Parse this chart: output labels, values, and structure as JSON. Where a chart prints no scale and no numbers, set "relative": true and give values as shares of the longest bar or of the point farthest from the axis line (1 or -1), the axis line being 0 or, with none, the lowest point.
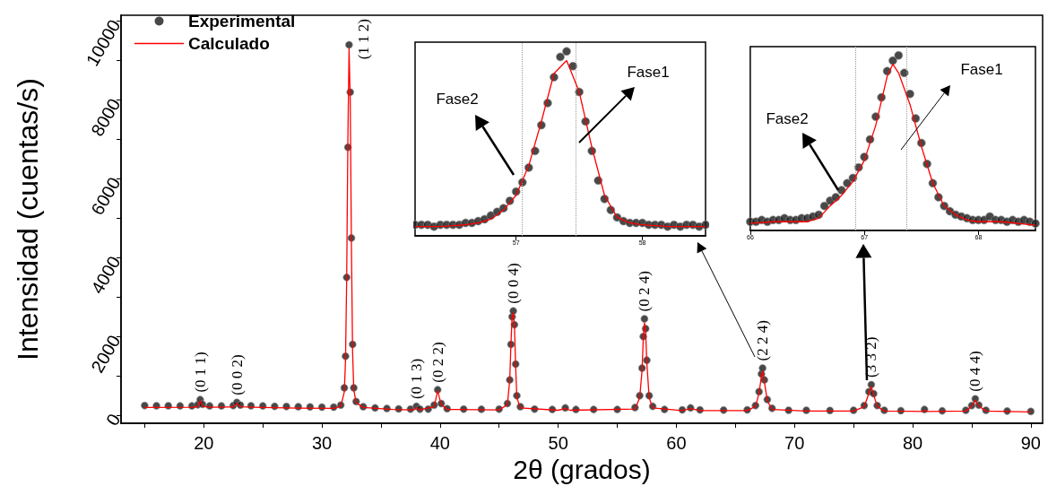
{
  "chart_data": [
    {
      "type": "scatter",
      "xlabel": "2θ (grados)",
      "ylabel": "Intensidad (cuentas/s)",
      "xlim": [
        13,
        91
      ],
      "ylim": [
        -200,
        10150
      ],
      "xticks": [
        20,
        30,
        40,
        50,
        60,
        70,
        80,
        90,
        {
          "value": 15,
          "label": null
        },
        {
          "value": 25,
          "label": null
        },
        {
          "value": 35,
          "label": null
        },
        {
          "value": 45,
          "label": null
        },
        {
          "value": 55,
          "label": null
        },
        {
          "value": 65,
          "label": null
        },
        {
          "value": 75,
          "label": null
        },
        {
          "value": 85,
          "label": null
        }
      ],
      "yticks": [
        0,
        2000,
        4000,
        6000,
        8000,
        10000,
        {
          "value": 1000,
          "label": null
        },
        {
          "value": 3000,
          "label": null
        },
        {
          "value": 5000,
          "label": null
        },
        {
          "value": 7000,
          "label": null
        },
        {
          "value": 9000,
          "label": null
        }
      ],
      "legend": "top left",
      "series": [
        {
          "name": "Experimental",
          "marker": "circle",
          "color": "#1a1a1a",
          "x": [
            15,
            16,
            17,
            18,
            19,
            19.5,
            19.7,
            19.9,
            20.5,
            21.5,
            22.5,
            22.8,
            23.1,
            24,
            25,
            26,
            27,
            28,
            29,
            30,
            31,
            31.6,
            31.9,
            32.0,
            32.1,
            32.2,
            32.3,
            32.4,
            32.5,
            32.6,
            32.7,
            32.9,
            33.5,
            34.5,
            35.5,
            36.5,
            37.5,
            38.0,
            38.3,
            39,
            39.5,
            39.8,
            40.1,
            40.6,
            42,
            43.5,
            45,
            45.7,
            45.9,
            46.0,
            46.1,
            46.2,
            46.3,
            46.4,
            46.5,
            46.8,
            48,
            49.5,
            50.6,
            51.5,
            53,
            55,
            56.5,
            56.9,
            57.1,
            57.2,
            57.3,
            57.4,
            57.5,
            57.7,
            58.0,
            59,
            60.5,
            61.2,
            62,
            64,
            66,
            66.7,
            67.0,
            67.2,
            67.3,
            67.45,
            67.7,
            68.1,
            69.5,
            71,
            73,
            75,
            75.9,
            76.3,
            76.5,
            76.7,
            77.0,
            77.6,
            79,
            81,
            82.5,
            84.5,
            85.0,
            85.3,
            85.6,
            86.2,
            88,
            90
          ],
          "values": [
            250,
            245,
            245,
            240,
            240,
            270,
            400,
            280,
            240,
            240,
            250,
            330,
            260,
            245,
            240,
            230,
            225,
            220,
            215,
            210,
            210,
            260,
            700,
            1500,
            3500,
            6800,
            9400,
            8200,
            4500,
            1800,
            700,
            350,
            220,
            190,
            175,
            165,
            160,
            230,
            160,
            160,
            260,
            650,
            300,
            170,
            160,
            155,
            160,
            300,
            900,
            1800,
            2500,
            2650,
            2300,
            1300,
            500,
            220,
            160,
            150,
            190,
            150,
            150,
            150,
            200,
            500,
            1200,
            2000,
            2450,
            2200,
            1400,
            500,
            230,
            150,
            140,
            190,
            140,
            135,
            140,
            250,
            600,
            1050,
            1200,
            900,
            400,
            180,
            130,
            130,
            125,
            130,
            250,
            600,
            780,
            550,
            250,
            130,
            120,
            150,
            115,
            130,
            250,
            420,
            260,
            130,
            110,
            100
          ]
        },
        {
          "name": "Calculado",
          "type": "line",
          "marker": "none",
          "color": "#ff0000",
          "x": [
            15,
            19,
            19.5,
            19.7,
            19.9,
            20.5,
            22.5,
            22.8,
            23.1,
            25,
            28,
            31,
            31.6,
            31.9,
            32.0,
            32.1,
            32.2,
            32.3,
            32.4,
            32.5,
            32.6,
            32.7,
            32.9,
            33.5,
            36,
            37.8,
            38.0,
            38.2,
            39.5,
            39.8,
            40.1,
            40.6,
            45,
            45.7,
            45.9,
            46.0,
            46.1,
            46.2,
            46.3,
            46.4,
            46.5,
            46.8,
            50,
            50.6,
            51,
            56.5,
            56.9,
            57.1,
            57.2,
            57.3,
            57.4,
            57.5,
            57.7,
            58.0,
            60.5,
            61.2,
            62,
            66,
            66.7,
            67.0,
            67.2,
            67.3,
            67.45,
            67.7,
            68.1,
            71,
            75,
            75.9,
            76.3,
            76.5,
            76.7,
            77.0,
            77.6,
            80.8,
            81,
            81.2,
            84.5,
            85.0,
            85.3,
            85.6,
            86.2,
            90
          ],
          "values": [
            200,
            205,
            220,
            370,
            230,
            205,
            215,
            300,
            220,
            200,
            185,
            180,
            230,
            600,
            1400,
            3500,
            7000,
            9300,
            8000,
            4300,
            1600,
            650,
            320,
            200,
            150,
            140,
            200,
            140,
            220,
            620,
            270,
            150,
            140,
            270,
            900,
            1800,
            2500,
            2600,
            2250,
            1250,
            450,
            190,
            130,
            170,
            130,
            160,
            450,
            1150,
            1950,
            2350,
            2150,
            1350,
            450,
            190,
            120,
            170,
            120,
            120,
            230,
            560,
            1000,
            1120,
            850,
            370,
            150,
            110,
            110,
            220,
            560,
            730,
            520,
            230,
            110,
            100,
            130,
            100,
            110,
            230,
            380,
            240,
            110,
            85
          ]
        }
      ],
      "annotations": [
        {
          "text": "(0 1 1)",
          "x": 19.7,
          "y": 400
        },
        {
          "text": "(0 0 2)",
          "x": 22.8,
          "y": 330
        },
        {
          "text": "(1 1 2)",
          "x": 32.3,
          "y": 9400
        },
        {
          "text": "(0 1 3)",
          "x": 38.0,
          "y": 230
        },
        {
          "text": "(0 2 2)",
          "x": 39.8,
          "y": 650
        },
        {
          "text": "(0 0 4)",
          "x": 46.2,
          "y": 2650
        },
        {
          "text": "(0 2 4)",
          "x": 57.3,
          "y": 2450
        },
        {
          "text": "(2 2 4)",
          "x": 67.3,
          "y": 1200
        },
        {
          "text": "(3 3 2)",
          "x": 76.5,
          "y": 780
        },
        {
          "text": "(0 4 4)",
          "x": 85.3,
          "y": 420
        }
      ]
    },
    {
      "type": "scatter",
      "relative": true,
      "xlim": [
        56.2,
        58.5
      ],
      "xticks": [
        57,
        58
      ],
      "tick_labels": "x",
      "series": [
        {
          "marker": "circle",
          "color": "#1a1a1a",
          "x": [
            56.2,
            56.25,
            56.3,
            56.35,
            56.4,
            56.45,
            56.5,
            56.55,
            56.6,
            56.65,
            56.7,
            56.75,
            56.8,
            56.85,
            56.9,
            56.95,
            57.0,
            57.05,
            57.1,
            57.15,
            57.2,
            57.25,
            57.3,
            57.35,
            57.4,
            57.45,
            57.5,
            57.55,
            57.6,
            57.65,
            57.7,
            57.75,
            57.8,
            57.85,
            57.9,
            57.95,
            58.0,
            58.05,
            58.1,
            58.15,
            58.2,
            58.25,
            58.3,
            58.35,
            58.4,
            58.45,
            58.5
          ],
          "values": [
            0.06,
            0.06,
            0.06,
            0.05,
            0.06,
            0.06,
            0.06,
            0.06,
            0.07,
            0.07,
            0.08,
            0.09,
            0.11,
            0.13,
            0.15,
            0.19,
            0.24,
            0.29,
            0.37,
            0.46,
            0.6,
            0.72,
            0.86,
            0.97,
            1.0,
            0.92,
            0.78,
            0.62,
            0.46,
            0.3,
            0.2,
            0.14,
            0.1,
            0.08,
            0.07,
            0.07,
            0.07,
            0.06,
            0.06,
            0.06,
            0.05,
            0.06,
            0.05,
            0.06,
            0.06,
            0.05,
            0.06
          ]
        },
        {
          "type": "line",
          "marker": "none",
          "color": "#ff0000",
          "x": [
            56.2,
            56.4,
            56.6,
            56.7,
            56.8,
            56.9,
            57.0,
            57.1,
            57.2,
            57.3,
            57.4,
            57.5,
            57.6,
            57.7,
            57.8,
            57.9,
            58.0,
            58.2,
            58.5
          ],
          "values": [
            0.05,
            0.05,
            0.06,
            0.07,
            0.09,
            0.14,
            0.22,
            0.38,
            0.62,
            0.88,
            0.95,
            0.78,
            0.48,
            0.22,
            0.1,
            0.07,
            0.06,
            0.05,
            0.05
          ]
        }
      ],
      "ref_lines": [
        {
          "axis": "x",
          "value": 57.05,
          "color": "#999999",
          "line_style": "dotted"
        },
        {
          "axis": "x",
          "value": 57.47,
          "color": "#999999",
          "line_style": "dotted"
        }
      ],
      "annotations": [
        "Fase2",
        "Fase1"
      ]
    },
    {
      "type": "scatter",
      "relative": true,
      "xlim": [
        66,
        68.5
      ],
      "xticks": [
        66,
        67,
        68
      ],
      "tick_labels": "x",
      "series": [
        {
          "marker": "circle",
          "color": "#1a1a1a",
          "x": [
            66.0,
            66.05,
            66.1,
            66.15,
            66.2,
            66.25,
            66.3,
            66.35,
            66.4,
            66.45,
            66.5,
            66.55,
            66.6,
            66.65,
            66.7,
            66.75,
            66.8,
            66.85,
            66.9,
            66.95,
            67.0,
            67.05,
            67.1,
            67.15,
            67.2,
            67.25,
            67.3,
            67.35,
            67.4,
            67.45,
            67.5,
            67.55,
            67.6,
            67.65,
            67.7,
            67.75,
            67.8,
            67.85,
            67.9,
            67.95,
            68.0,
            68.05,
            68.1,
            68.15,
            68.2,
            68.25,
            68.3,
            68.35,
            68.4,
            68.45,
            68.5
          ],
          "values": [
            0.05,
            0.05,
            0.06,
            0.05,
            0.06,
            0.06,
            0.07,
            0.06,
            0.06,
            0.07,
            0.07,
            0.08,
            0.09,
            0.14,
            0.17,
            0.19,
            0.23,
            0.27,
            0.3,
            0.36,
            0.42,
            0.52,
            0.65,
            0.76,
            0.91,
            0.97,
            1.0,
            0.9,
            0.78,
            0.64,
            0.5,
            0.38,
            0.27,
            0.19,
            0.14,
            0.11,
            0.09,
            0.08,
            0.07,
            0.06,
            0.06,
            0.06,
            0.08,
            0.06,
            0.06,
            0.05,
            0.06,
            0.05,
            0.06,
            0.05,
            0.04
          ]
        },
        {
          "type": "line",
          "marker": "none",
          "color": "#ff0000",
          "x": [
            66.0,
            66.2,
            66.4,
            66.5,
            66.6,
            66.7,
            66.8,
            66.9,
            67.0,
            67.1,
            67.2,
            67.25,
            67.3,
            67.4,
            67.5,
            67.6,
            67.7,
            67.8,
            67.9,
            68.0,
            68.2,
            68.5
          ],
          "values": [
            0.04,
            0.05,
            0.05,
            0.05,
            0.07,
            0.14,
            0.2,
            0.28,
            0.4,
            0.6,
            0.88,
            0.95,
            0.9,
            0.72,
            0.48,
            0.27,
            0.14,
            0.09,
            0.06,
            0.05,
            0.05,
            0.03
          ]
        }
      ],
      "ref_lines": [
        {
          "axis": "x",
          "value": 66.92,
          "color": "#999999",
          "line_style": "dotted"
        },
        {
          "axis": "x",
          "value": 67.37,
          "color": "#999999",
          "line_style": "dotted"
        }
      ],
      "annotations": [
        "Fase2",
        "Fase1"
      ]
    }
  ]
}
